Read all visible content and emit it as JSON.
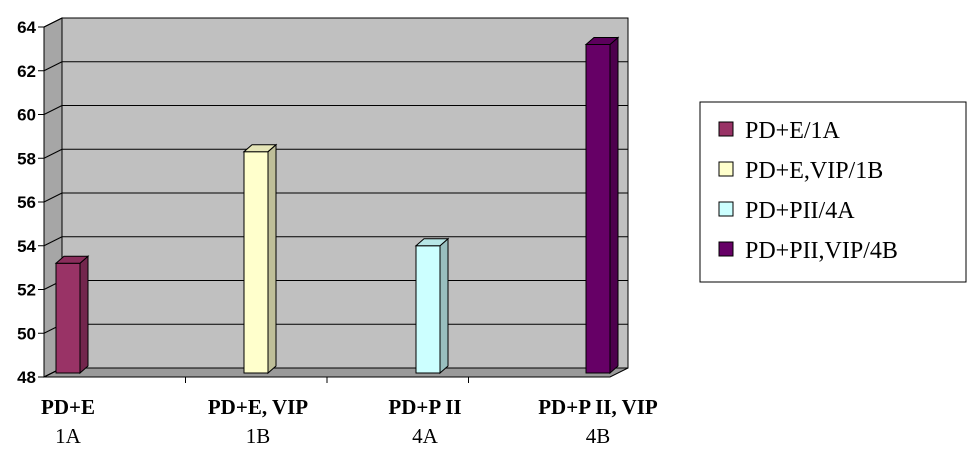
{
  "chart_data": {
    "type": "bar",
    "categories": [
      {
        "line1": "PD+E",
        "line2": "1A"
      },
      {
        "line1": "PD+E, VIP",
        "line2": "1B"
      },
      {
        "line1": "PD+P II",
        "line2": "4A"
      },
      {
        "line1": "PD+P II, VIP",
        "line2": "4B"
      }
    ],
    "series": [
      {
        "name": "PD+E/1A",
        "color": "#993366",
        "values": [
          53.2,
          null,
          null,
          null
        ]
      },
      {
        "name": "PD+E,VIP/1B",
        "color": "#FFFFCC",
        "values": [
          null,
          58.3,
          null,
          null
        ]
      },
      {
        "name": "PD+PII/4A",
        "color": "#CCFFFF",
        "values": [
          null,
          null,
          54.0,
          null
        ]
      },
      {
        "name": "PD+PII,VIP/4B",
        "color": "#660066",
        "values": [
          null,
          null,
          null,
          63.2
        ]
      }
    ],
    "ylim": [
      48,
      64
    ],
    "yticks": [
      48,
      50,
      52,
      54,
      56,
      58,
      60,
      62,
      64
    ],
    "grid": true,
    "legend_position": "right",
    "plot_background": "#C0C0C0",
    "title": "",
    "xlabel": "",
    "ylabel": ""
  }
}
